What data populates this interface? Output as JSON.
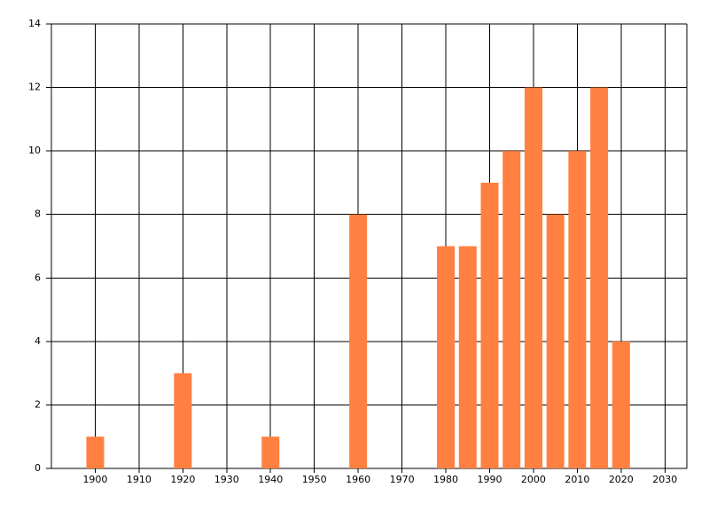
{
  "chart_data": {
    "type": "bar",
    "x": [
      1900,
      1920,
      1940,
      1960,
      1980,
      1985,
      1990,
      1995,
      2000,
      2005,
      2010,
      2015,
      2020
    ],
    "values": [
      1,
      3,
      1,
      8,
      7,
      7,
      9,
      10,
      12,
      8,
      10,
      12,
      4
    ],
    "color": "#ff8040",
    "xlim": [
      1890,
      2035
    ],
    "xticks": [
      1900,
      1910,
      1920,
      1930,
      1940,
      1950,
      1960,
      1970,
      1980,
      1990,
      2000,
      2010,
      2020,
      2030
    ],
    "ylim": [
      0,
      14
    ],
    "yticks": [
      0,
      2,
      4,
      6,
      8,
      10,
      12,
      14
    ],
    "grid": true
  }
}
